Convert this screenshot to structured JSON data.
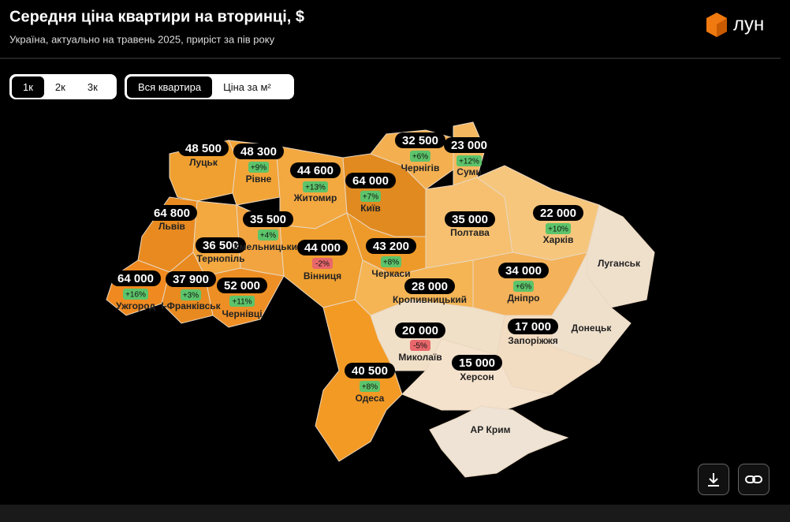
{
  "header": {
    "title": "Середня ціна квартири на вторинці, $",
    "subtitle": "Україна, актуально на травень 2025, приріст за пів року"
  },
  "logo": {
    "text": "лун"
  },
  "tabs": {
    "rooms": [
      "1к",
      "2к",
      "3к"
    ],
    "price_mode": [
      "Вся квартира",
      "Ціна за м²"
    ]
  },
  "regions": [
    {
      "name": "Луцьк",
      "price": "48 500"
    },
    {
      "name": "Рівне",
      "price": "48 300",
      "change": "+9%"
    },
    {
      "name": "Житомир",
      "price": "44 600",
      "change": "+13%"
    },
    {
      "name": "Київ",
      "price": "64 000",
      "change": "+7%"
    },
    {
      "name": "Чернігів",
      "price": "32 500",
      "change": "+6%"
    },
    {
      "name": "Суми",
      "price": "23 000",
      "change": "+12%"
    },
    {
      "name": "Львів",
      "price": "64 800"
    },
    {
      "name": "Тернопіль",
      "price": "36 500"
    },
    {
      "name": "Хмельницький",
      "price": "35 500",
      "change": "+4%"
    },
    {
      "name": "Вінниця",
      "price": "44 000",
      "change": "-2%"
    },
    {
      "name": "Черкаси",
      "price": "43 200",
      "change": "+8%"
    },
    {
      "name": "Полтава",
      "price": "35 000"
    },
    {
      "name": "Харків",
      "price": "22 000",
      "change": "+10%"
    },
    {
      "name": "Луганськ"
    },
    {
      "name": "Донецьк"
    },
    {
      "name": "Дніпро",
      "price": "34 000",
      "change": "+6%"
    },
    {
      "name": "Запоріжжя",
      "price": "17 000"
    },
    {
      "name": "Херсон",
      "price": "15 000"
    },
    {
      "name": "Миколаїв",
      "price": "20 000",
      "change": "-5%"
    },
    {
      "name": "Кропивницький",
      "price": "28 000"
    },
    {
      "name": "Одеса",
      "price": "40 500",
      "change": "+8%"
    },
    {
      "name": "Ужгород",
      "price": "64 000",
      "change": "+16%"
    },
    {
      "name": "І-Франківськ",
      "price": "37 900",
      "change": "+3%"
    },
    {
      "name": "Чернівці",
      "price": "52 000",
      "change": "+11%"
    },
    {
      "name": "АР Крим"
    }
  ]
}
